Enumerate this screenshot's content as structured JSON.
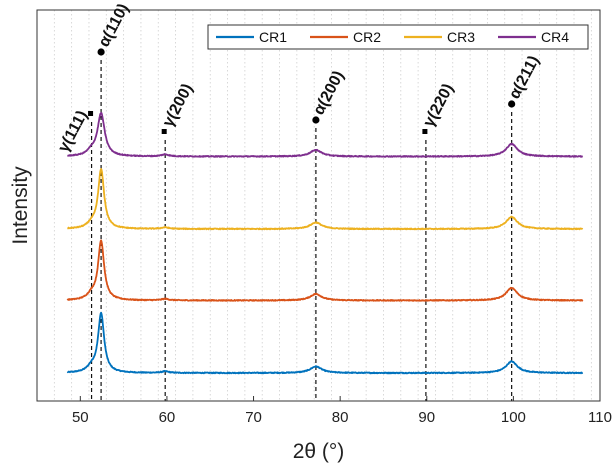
{
  "chart_data": {
    "type": "line",
    "xlabel": "2θ (°)",
    "ylabel": "Intensity",
    "xlim": [
      45,
      110
    ],
    "xticks": [
      50,
      60,
      70,
      80,
      90,
      100,
      110
    ],
    "grid": "vertical minor dotted",
    "legend_position": "top-right",
    "x_range": [
      48.5,
      108
    ],
    "series": [
      {
        "name": "CR1",
        "color": "#0072BD",
        "baseline": 0,
        "noise": 0.9,
        "peaks": [
          {
            "x": 51.3,
            "h": 10,
            "w": 0.6
          },
          {
            "x": 52.4,
            "h": 118,
            "w": 0.42
          },
          {
            "x": 59.8,
            "h": 3,
            "w": 0.5
          },
          {
            "x": 77.2,
            "h": 13,
            "w": 0.8
          },
          {
            "x": 99.8,
            "h": 23,
            "w": 0.8
          }
        ]
      },
      {
        "name": "CR2",
        "color": "#D95319",
        "baseline": 1,
        "noise": 0.9,
        "peaks": [
          {
            "x": 51.3,
            "h": 10,
            "w": 0.6
          },
          {
            "x": 52.4,
            "h": 118,
            "w": 0.42
          },
          {
            "x": 59.8,
            "h": 3,
            "w": 0.5
          },
          {
            "x": 77.2,
            "h": 13,
            "w": 0.8
          },
          {
            "x": 99.8,
            "h": 25,
            "w": 0.8
          }
        ]
      },
      {
        "name": "CR3",
        "color": "#EDB120",
        "baseline": 2,
        "noise": 0.9,
        "peaks": [
          {
            "x": 51.3,
            "h": 8,
            "w": 0.6
          },
          {
            "x": 52.4,
            "h": 118,
            "w": 0.42
          },
          {
            "x": 59.8,
            "h": 3,
            "w": 0.5
          },
          {
            "x": 77.2,
            "h": 13,
            "w": 0.8
          },
          {
            "x": 99.8,
            "h": 24,
            "w": 0.8
          }
        ]
      },
      {
        "name": "CR4",
        "color": "#7E2F8E",
        "baseline": 3,
        "noise": 0.9,
        "peaks": [
          {
            "x": 51.3,
            "h": 9,
            "w": 0.6
          },
          {
            "x": 52.4,
            "h": 85,
            "w": 0.5
          },
          {
            "x": 59.8,
            "h": 4,
            "w": 0.5
          },
          {
            "x": 77.2,
            "h": 13,
            "w": 0.8
          },
          {
            "x": 99.8,
            "h": 25,
            "w": 0.8
          }
        ]
      }
    ],
    "annotations": [
      {
        "label": "γ(111)",
        "x": 51.3,
        "marker": "square"
      },
      {
        "label": "α(110)",
        "x": 52.4,
        "marker": "circle"
      },
      {
        "label": "γ(200)",
        "x": 59.8,
        "marker": "square"
      },
      {
        "label": "α(200)",
        "x": 77.2,
        "marker": "circle"
      },
      {
        "label": "γ(220)",
        "x": 89.9,
        "marker": "square"
      },
      {
        "label": "α(211)",
        "x": 99.8,
        "marker": "circle"
      }
    ]
  }
}
